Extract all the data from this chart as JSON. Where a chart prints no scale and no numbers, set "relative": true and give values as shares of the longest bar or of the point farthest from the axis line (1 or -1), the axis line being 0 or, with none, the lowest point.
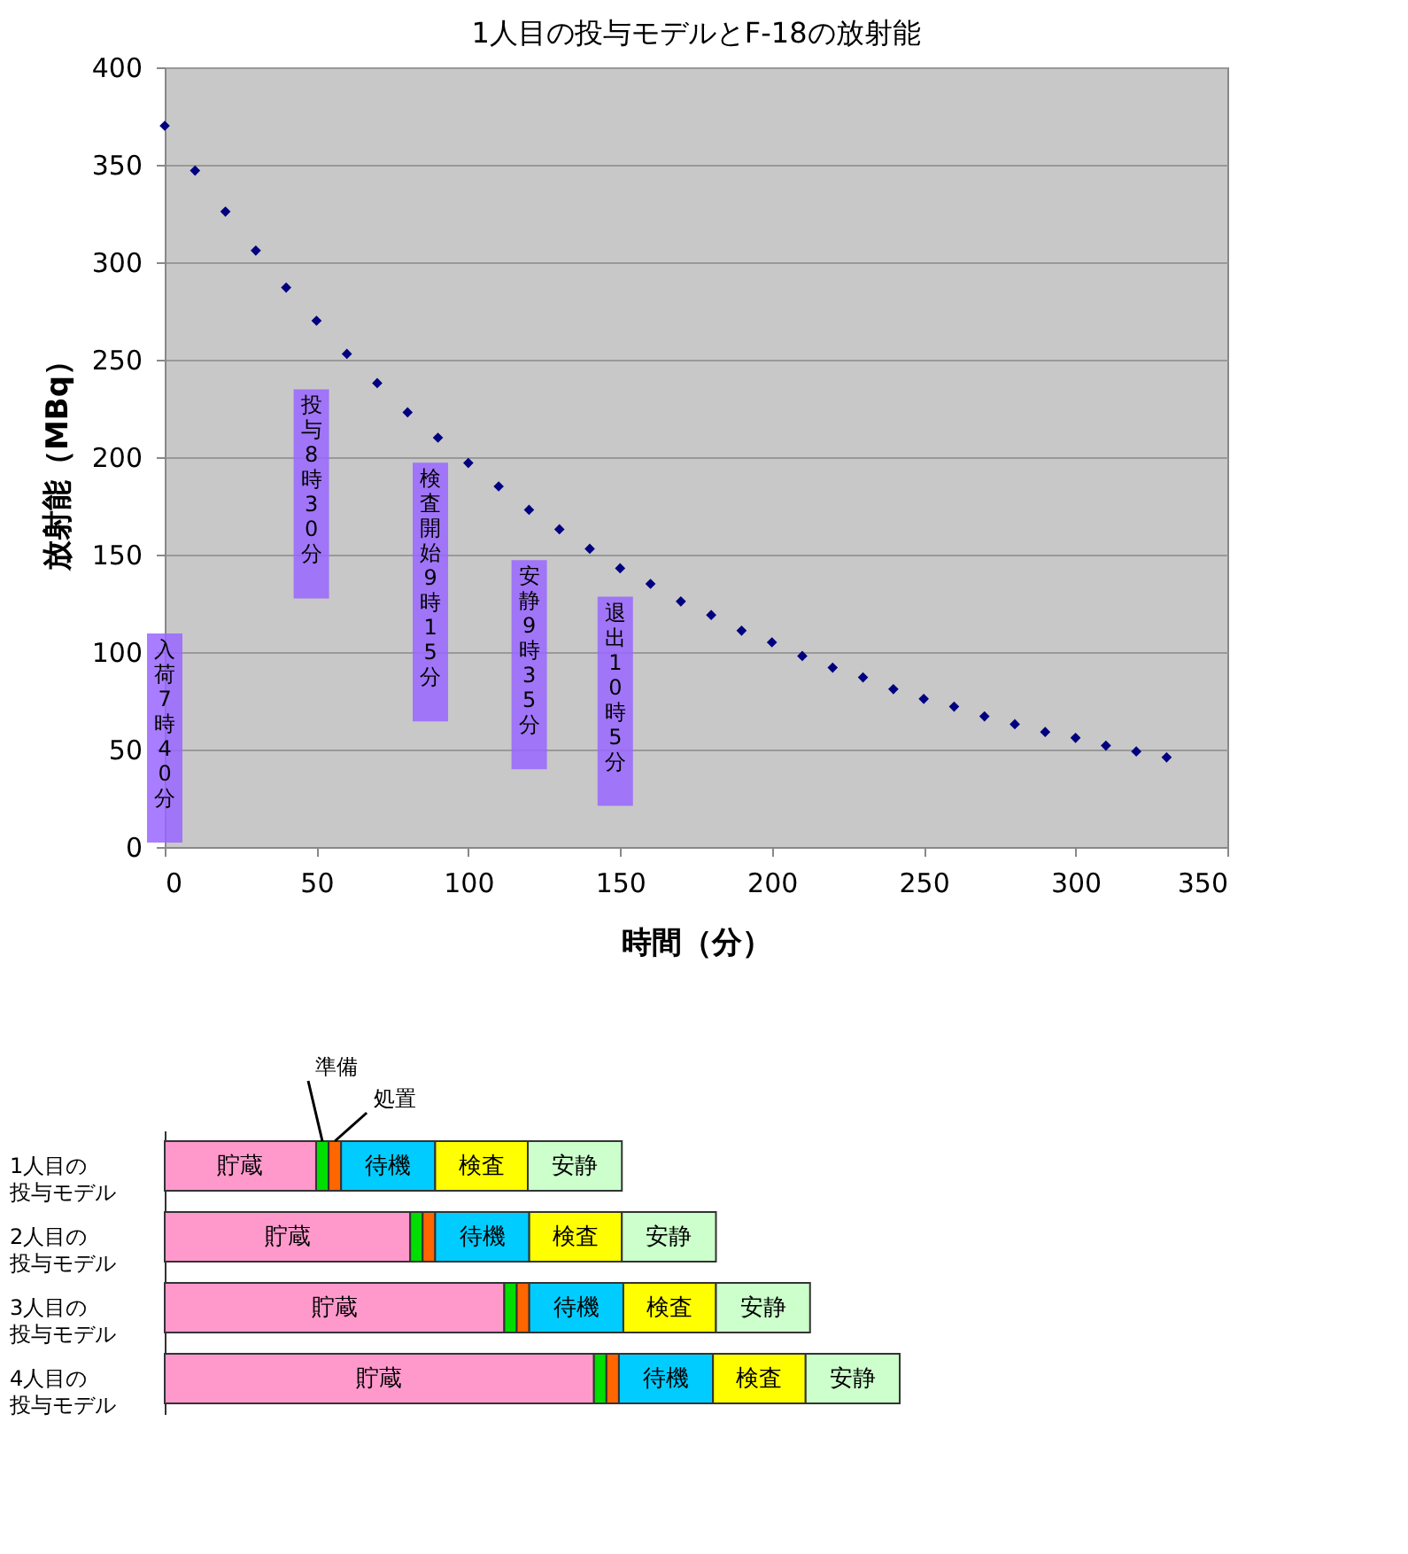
{
  "chart_data": [
    {
      "type": "scatter",
      "title": "1人目の投与モデルとF-18の放射能",
      "xlabel": "時間（分）",
      "ylabel": "放射能（MBq）",
      "x": [
        0,
        10,
        20,
        30,
        40,
        50,
        60,
        70,
        80,
        90,
        100,
        110,
        120,
        130,
        140,
        150,
        160,
        170,
        180,
        190,
        200,
        210,
        220,
        230,
        240,
        250,
        260,
        270,
        280,
        290,
        300,
        310,
        320,
        330
      ],
      "values": [
        370,
        347,
        326,
        306,
        287,
        270,
        253,
        238,
        223,
        210,
        197,
        185,
        173,
        163,
        153,
        143,
        135,
        126,
        119,
        111,
        105,
        98,
        92,
        87,
        81,
        76,
        72,
        67,
        63,
        59,
        56,
        52,
        49,
        46
      ],
      "color": "#000080",
      "marker": "diamond",
      "xlim": [
        0,
        350
      ],
      "ylim": [
        0,
        400
      ],
      "xticks": [
        0,
        50,
        100,
        150,
        200,
        250,
        300,
        350
      ],
      "yticks": [
        0,
        50,
        100,
        150,
        200,
        250,
        300,
        350,
        400
      ],
      "grid": "y",
      "legend": false,
      "annotations": [
        "入荷 7時40分",
        "投与 8時30分",
        "検査開始 9時15分",
        "安静 9時35分",
        "退出 10時5分"
      ]
    },
    {
      "type": "bar",
      "orientation": "horizontal",
      "stacked": true,
      "relative": true,
      "legend": false,
      "categories": [
        "1人目の投与モデル",
        "2人目の投与モデル",
        "3人目の投与モデル",
        "4人目の投与モデル"
      ],
      "series": [
        {
          "name": "貯蔵",
          "color": "#ff99cc",
          "values": [
            0.206,
            0.334,
            0.462,
            0.584
          ]
        },
        {
          "name": "準備",
          "color": "#00dd00",
          "values": [
            0.017,
            0.017,
            0.017,
            0.017
          ]
        },
        {
          "name": "処置",
          "color": "#ff6600",
          "values": [
            0.017,
            0.017,
            0.017,
            0.017
          ]
        },
        {
          "name": "待機",
          "color": "#00ccff",
          "values": [
            0.128,
            0.128,
            0.128,
            0.128
          ]
        },
        {
          "name": "検査",
          "color": "#ffff00",
          "values": [
            0.126,
            0.126,
            0.126,
            0.126
          ]
        },
        {
          "name": "安静",
          "color": "#ccffcc",
          "values": [
            0.128,
            0.128,
            0.128,
            0.128
          ]
        }
      ]
    }
  ]
}
